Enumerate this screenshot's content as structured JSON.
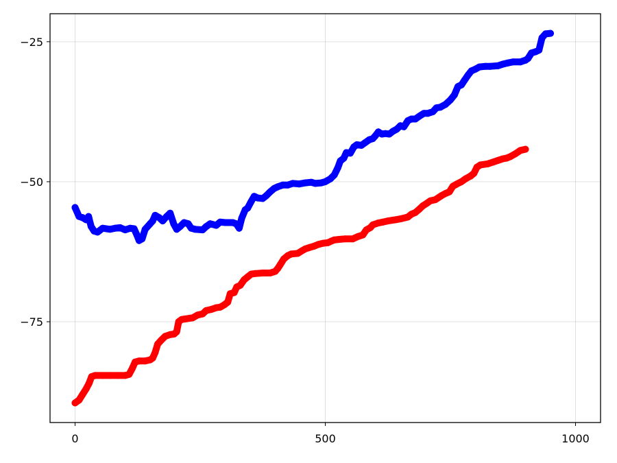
{
  "chart_data": {
    "type": "scatter",
    "title": "",
    "xlabel": "",
    "ylabel": "",
    "xlim": [
      -50,
      1050
    ],
    "ylim": [
      -93,
      -20
    ],
    "x_ticks": [
      0,
      500,
      1000
    ],
    "x_tick_labels": [
      "0",
      "500",
      "1000"
    ],
    "y_ticks": [
      -25,
      -50,
      -75
    ],
    "y_tick_labels": [
      "−25",
      "−50",
      "−75"
    ],
    "grid": true,
    "legend": "none",
    "series": [
      {
        "color": "#0000ff",
        "points": [
          [
            0,
            -54.6
          ],
          [
            8,
            -56.2
          ],
          [
            15,
            -56.4
          ],
          [
            22,
            -56.8
          ],
          [
            27,
            -56.2
          ],
          [
            32,
            -58.0
          ],
          [
            38,
            -58.8
          ],
          [
            45,
            -59.0
          ],
          [
            55,
            -58.3
          ],
          [
            70,
            -58.5
          ],
          [
            80,
            -58.3
          ],
          [
            90,
            -58.2
          ],
          [
            100,
            -58.6
          ],
          [
            110,
            -58.3
          ],
          [
            118,
            -58.4
          ],
          [
            124,
            -59.6
          ],
          [
            128,
            -60.5
          ],
          [
            134,
            -60.2
          ],
          [
            140,
            -58.5
          ],
          [
            150,
            -57.5
          ],
          [
            155,
            -57.0
          ],
          [
            160,
            -56.0
          ],
          [
            168,
            -56.4
          ],
          [
            175,
            -57.0
          ],
          [
            183,
            -56.2
          ],
          [
            190,
            -55.6
          ],
          [
            197,
            -57.5
          ],
          [
            203,
            -58.5
          ],
          [
            210,
            -58.0
          ],
          [
            218,
            -57.3
          ],
          [
            226,
            -57.5
          ],
          [
            232,
            -58.3
          ],
          [
            240,
            -58.5
          ],
          [
            255,
            -58.6
          ],
          [
            262,
            -58.0
          ],
          [
            270,
            -57.5
          ],
          [
            282,
            -57.8
          ],
          [
            290,
            -57.2
          ],
          [
            300,
            -57.3
          ],
          [
            315,
            -57.3
          ],
          [
            322,
            -57.5
          ],
          [
            328,
            -58.3
          ],
          [
            333,
            -56.5
          ],
          [
            340,
            -55.0
          ],
          [
            345,
            -54.7
          ],
          [
            352,
            -53.5
          ],
          [
            358,
            -52.6
          ],
          [
            365,
            -52.9
          ],
          [
            375,
            -53.0
          ],
          [
            382,
            -52.5
          ],
          [
            390,
            -51.8
          ],
          [
            398,
            -51.2
          ],
          [
            405,
            -50.9
          ],
          [
            415,
            -50.6
          ],
          [
            425,
            -50.6
          ],
          [
            435,
            -50.3
          ],
          [
            448,
            -50.4
          ],
          [
            460,
            -50.2
          ],
          [
            472,
            -50.1
          ],
          [
            480,
            -50.3
          ],
          [
            492,
            -50.2
          ],
          [
            500,
            -50.0
          ],
          [
            510,
            -49.5
          ],
          [
            518,
            -48.8
          ],
          [
            525,
            -47.5
          ],
          [
            530,
            -46.3
          ],
          [
            537,
            -45.8
          ],
          [
            542,
            -44.8
          ],
          [
            550,
            -44.9
          ],
          [
            557,
            -43.8
          ],
          [
            563,
            -43.4
          ],
          [
            572,
            -43.5
          ],
          [
            580,
            -43.0
          ],
          [
            588,
            -42.5
          ],
          [
            595,
            -42.3
          ],
          [
            600,
            -41.8
          ],
          [
            606,
            -41.1
          ],
          [
            613,
            -41.5
          ],
          [
            620,
            -41.4
          ],
          [
            628,
            -41.5
          ],
          [
            635,
            -41.0
          ],
          [
            643,
            -40.6
          ],
          [
            650,
            -40.0
          ],
          [
            657,
            -40.2
          ],
          [
            665,
            -39.1
          ],
          [
            672,
            -38.8
          ],
          [
            680,
            -38.8
          ],
          [
            688,
            -38.3
          ],
          [
            697,
            -37.8
          ],
          [
            705,
            -37.8
          ],
          [
            715,
            -37.5
          ],
          [
            722,
            -36.8
          ],
          [
            730,
            -36.7
          ],
          [
            740,
            -36.2
          ],
          [
            750,
            -35.4
          ],
          [
            758,
            -34.5
          ],
          [
            765,
            -33.0
          ],
          [
            772,
            -32.7
          ],
          [
            778,
            -31.9
          ],
          [
            785,
            -31.0
          ],
          [
            792,
            -30.2
          ],
          [
            800,
            -29.9
          ],
          [
            808,
            -29.5
          ],
          [
            820,
            -29.4
          ],
          [
            830,
            -29.4
          ],
          [
            845,
            -29.3
          ],
          [
            855,
            -29.0
          ],
          [
            865,
            -28.8
          ],
          [
            875,
            -28.6
          ],
          [
            890,
            -28.6
          ],
          [
            900,
            -28.3
          ],
          [
            905,
            -28.0
          ],
          [
            912,
            -27.0
          ],
          [
            920,
            -26.8
          ],
          [
            927,
            -26.5
          ],
          [
            933,
            -24.3
          ],
          [
            940,
            -23.6
          ],
          [
            950,
            -23.5
          ]
        ]
      },
      {
        "color": "#ff0000",
        "points": [
          [
            0,
            -89.5
          ],
          [
            8,
            -89.0
          ],
          [
            15,
            -88.0
          ],
          [
            22,
            -87.0
          ],
          [
            28,
            -86.0
          ],
          [
            33,
            -84.8
          ],
          [
            40,
            -84.6
          ],
          [
            55,
            -84.6
          ],
          [
            70,
            -84.6
          ],
          [
            85,
            -84.6
          ],
          [
            100,
            -84.6
          ],
          [
            108,
            -84.4
          ],
          [
            114,
            -83.4
          ],
          [
            120,
            -82.2
          ],
          [
            128,
            -82.0
          ],
          [
            140,
            -82.0
          ],
          [
            150,
            -81.8
          ],
          [
            155,
            -81.5
          ],
          [
            160,
            -80.5
          ],
          [
            165,
            -79.0
          ],
          [
            172,
            -78.3
          ],
          [
            180,
            -77.6
          ],
          [
            190,
            -77.3
          ],
          [
            198,
            -77.2
          ],
          [
            203,
            -76.8
          ],
          [
            207,
            -75.0
          ],
          [
            213,
            -74.6
          ],
          [
            220,
            -74.5
          ],
          [
            235,
            -74.3
          ],
          [
            245,
            -73.8
          ],
          [
            255,
            -73.6
          ],
          [
            262,
            -73.0
          ],
          [
            272,
            -72.8
          ],
          [
            282,
            -72.5
          ],
          [
            290,
            -72.4
          ],
          [
            298,
            -72.0
          ],
          [
            305,
            -71.5
          ],
          [
            310,
            -70.0
          ],
          [
            318,
            -69.8
          ],
          [
            323,
            -68.8
          ],
          [
            330,
            -68.5
          ],
          [
            338,
            -67.5
          ],
          [
            345,
            -67.0
          ],
          [
            352,
            -66.5
          ],
          [
            360,
            -66.4
          ],
          [
            375,
            -66.3
          ],
          [
            390,
            -66.3
          ],
          [
            400,
            -66.0
          ],
          [
            405,
            -65.5
          ],
          [
            410,
            -64.8
          ],
          [
            417,
            -63.8
          ],
          [
            425,
            -63.2
          ],
          [
            432,
            -62.9
          ],
          [
            445,
            -62.8
          ],
          [
            452,
            -62.4
          ],
          [
            460,
            -62.0
          ],
          [
            470,
            -61.7
          ],
          [
            478,
            -61.5
          ],
          [
            486,
            -61.2
          ],
          [
            495,
            -61.0
          ],
          [
            505,
            -60.9
          ],
          [
            512,
            -60.6
          ],
          [
            518,
            -60.4
          ],
          [
            528,
            -60.3
          ],
          [
            540,
            -60.2
          ],
          [
            555,
            -60.2
          ],
          [
            565,
            -59.8
          ],
          [
            575,
            -59.5
          ],
          [
            582,
            -58.6
          ],
          [
            590,
            -58.2
          ],
          [
            595,
            -57.7
          ],
          [
            605,
            -57.4
          ],
          [
            615,
            -57.2
          ],
          [
            625,
            -57.0
          ],
          [
            640,
            -56.8
          ],
          [
            652,
            -56.6
          ],
          [
            665,
            -56.3
          ],
          [
            672,
            -55.8
          ],
          [
            680,
            -55.5
          ],
          [
            688,
            -54.9
          ],
          [
            695,
            -54.3
          ],
          [
            702,
            -53.9
          ],
          [
            710,
            -53.4
          ],
          [
            720,
            -53.2
          ],
          [
            732,
            -52.5
          ],
          [
            740,
            -52.1
          ],
          [
            748,
            -51.8
          ],
          [
            755,
            -50.8
          ],
          [
            763,
            -50.4
          ],
          [
            772,
            -50.0
          ],
          [
            780,
            -49.5
          ],
          [
            790,
            -49.0
          ],
          [
            797,
            -48.5
          ],
          [
            803,
            -47.4
          ],
          [
            810,
            -47.0
          ],
          [
            825,
            -46.8
          ],
          [
            835,
            -46.5
          ],
          [
            845,
            -46.2
          ],
          [
            855,
            -45.9
          ],
          [
            862,
            -45.8
          ],
          [
            870,
            -45.5
          ],
          [
            880,
            -45.0
          ],
          [
            890,
            -44.4
          ],
          [
            900,
            -44.2
          ]
        ]
      }
    ]
  }
}
